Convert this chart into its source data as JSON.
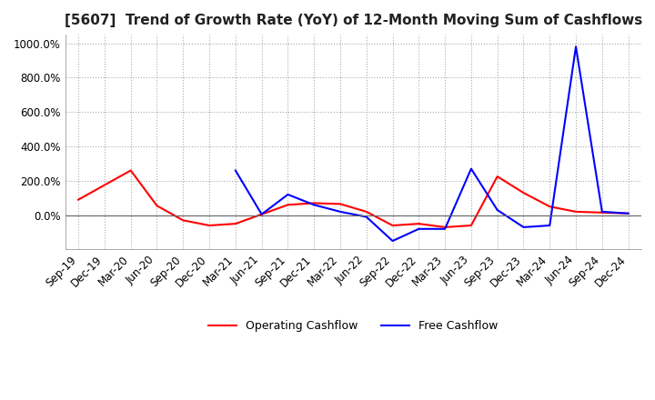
{
  "title": "[5607]  Trend of Growth Rate (YoY) of 12-Month Moving Sum of Cashflows",
  "ylim": [
    -200,
    1050
  ],
  "yticks": [
    0,
    200,
    400,
    600,
    800,
    1000
  ],
  "ytick_labels": [
    "0.0%",
    "200.0%",
    "400.0%",
    "600.0%",
    "800.0%",
    "1000.0%"
  ],
  "background_color": "#ffffff",
  "grid_color": "#aaaaaa",
  "x_labels": [
    "Sep-19",
    "Dec-19",
    "Mar-20",
    "Jun-20",
    "Sep-20",
    "Dec-20",
    "Mar-21",
    "Jun-21",
    "Sep-21",
    "Dec-21",
    "Mar-22",
    "Jun-22",
    "Sep-22",
    "Dec-22",
    "Mar-23",
    "Jun-23",
    "Sep-23",
    "Dec-23",
    "Mar-24",
    "Jun-24",
    "Sep-24",
    "Dec-24"
  ],
  "operating_cashflow": [
    90,
    175,
    260,
    55,
    -30,
    -60,
    -50,
    5,
    60,
    70,
    65,
    20,
    -60,
    -50,
    -70,
    -60,
    225,
    130,
    50,
    20,
    15,
    10
  ],
  "free_cashflow": [
    null,
    null,
    null,
    null,
    null,
    null,
    260,
    5,
    120,
    60,
    20,
    -10,
    -150,
    -80,
    -80,
    270,
    30,
    -70,
    -60,
    980,
    20,
    10
  ],
  "op_color": "#ff0000",
  "free_color": "#0000ff",
  "legend_labels": [
    "Operating Cashflow",
    "Free Cashflow"
  ],
  "title_fontsize": 11,
  "tick_fontsize": 8.5
}
